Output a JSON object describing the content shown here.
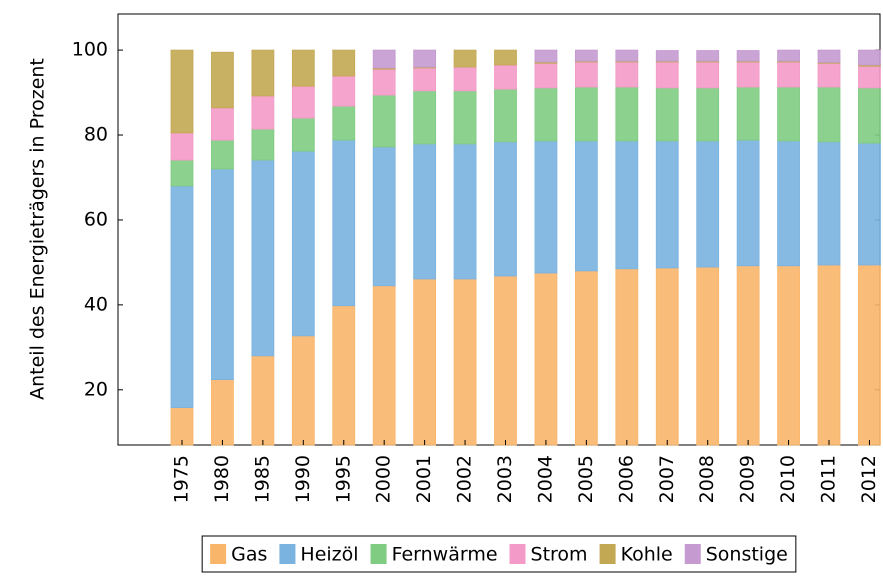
{
  "chart_data": {
    "type": "stacked_bar",
    "y_label": "Anteil des Energieträgers in Prozent",
    "categories": [
      "1975",
      "1980",
      "1985",
      "1990",
      "1995",
      "2000",
      "2001",
      "2002",
      "2003",
      "2004",
      "2005",
      "2006",
      "2007",
      "2008",
      "2009",
      "2010",
      "2011",
      "2012"
    ],
    "series": [
      {
        "name": "Gas",
        "color": "#f9b56a",
        "values": [
          15.8,
          22.4,
          28,
          32.7,
          39.8,
          44.5,
          46.1,
          46.1,
          46.8,
          47.5,
          48,
          48.5,
          48.7,
          48.9,
          49.2,
          49.2,
          49.4,
          49.4
        ]
      },
      {
        "name": "Heizöl",
        "color": "#7ab3e0",
        "values": [
          52.2,
          49.6,
          46.1,
          43.5,
          39,
          32.7,
          31.8,
          31.8,
          31.6,
          31.1,
          30.6,
          30.1,
          29.9,
          29.7,
          29.6,
          29.4,
          29,
          28.7
        ]
      },
      {
        "name": "Fernwärme",
        "color": "#7fcc82",
        "values": [
          6.1,
          6.8,
          7.3,
          7.8,
          8,
          12.2,
          12.5,
          12.5,
          12.4,
          12.5,
          12.7,
          12.7,
          12.5,
          12.5,
          12.5,
          12.7,
          12.9,
          13
        ]
      },
      {
        "name": "Strom",
        "color": "#f49ac8",
        "values": [
          6.4,
          7.6,
          7.8,
          7.5,
          7.1,
          6.1,
          5.4,
          5.6,
          5.7,
          5.8,
          5.9,
          5.9,
          6.1,
          6.1,
          5.9,
          5.9,
          5.6,
          5.1
        ]
      },
      {
        "name": "Kohle",
        "color": "#c3a853",
        "values": [
          19.5,
          13.1,
          10.8,
          8.5,
          6.1,
          0.3,
          0.2,
          4,
          3.5,
          0.3,
          0.2,
          0.2,
          0.2,
          0.2,
          0.2,
          0.2,
          0.2,
          0.3
        ]
      },
      {
        "name": "Sonstige",
        "color": "#c49ad0",
        "values": [
          0,
          0,
          0,
          0,
          0,
          4.2,
          4,
          0,
          0,
          2.8,
          2.6,
          2.6,
          2.5,
          2.5,
          2.5,
          2.6,
          2.9,
          3.5
        ]
      }
    ],
    "ylim": [
      7,
      108.5
    ],
    "yticks": [
      20,
      40,
      60,
      80,
      100
    ],
    "legend": "bottom"
  }
}
